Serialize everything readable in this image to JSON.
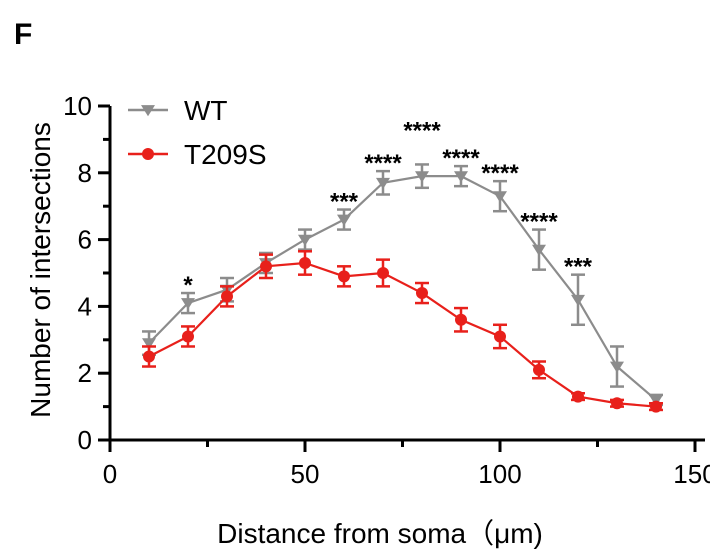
{
  "panel_label": "F",
  "chart_data": {
    "type": "line",
    "title": "",
    "xlabel": "Distance from soma（μm)",
    "ylabel": "Number of intersections",
    "xlim": [
      0,
      150
    ],
    "ylim": [
      0,
      10
    ],
    "x_ticks": [
      0,
      50,
      100,
      150
    ],
    "x_tick_labels": [
      "0",
      "50",
      "100",
      "150"
    ],
    "y_ticks": [
      0,
      2,
      4,
      6,
      8,
      10
    ],
    "y_tick_labels": [
      "0",
      "2",
      "4",
      "6",
      "8",
      "10"
    ],
    "grid": false,
    "legend_position": "top-left",
    "x": [
      10,
      20,
      30,
      40,
      50,
      60,
      70,
      80,
      90,
      100,
      110,
      120,
      130,
      140
    ],
    "series": [
      {
        "name": "WT",
        "color": "#8c8c8c",
        "marker": "triangle-down",
        "values": [
          2.9,
          4.1,
          4.5,
          5.3,
          6.0,
          6.6,
          7.7,
          7.9,
          7.9,
          7.3,
          5.7,
          4.2,
          2.2,
          1.2
        ],
        "errors": [
          0.35,
          0.3,
          0.35,
          0.3,
          0.3,
          0.3,
          0.35,
          0.35,
          0.3,
          0.45,
          0.6,
          0.75,
          0.6,
          0.15
        ]
      },
      {
        "name": "T209S",
        "color": "#e8201b",
        "marker": "circle",
        "values": [
          2.5,
          3.1,
          4.3,
          5.2,
          5.3,
          4.9,
          5.0,
          4.4,
          3.6,
          3.1,
          2.1,
          1.3,
          1.1,
          1.0
        ],
        "errors": [
          0.3,
          0.3,
          0.3,
          0.35,
          0.35,
          0.3,
          0.4,
          0.3,
          0.35,
          0.35,
          0.25,
          0.1,
          0.1,
          0.1
        ]
      }
    ],
    "annotations": [
      {
        "x": 20,
        "label": "*"
      },
      {
        "x": 60,
        "label": "***"
      },
      {
        "x": 70,
        "label": "****"
      },
      {
        "x": 80,
        "label": "****"
      },
      {
        "x": 90,
        "label": "****"
      },
      {
        "x": 100,
        "label": "****"
      },
      {
        "x": 110,
        "label": "****"
      },
      {
        "x": 120,
        "label": "***"
      }
    ]
  }
}
